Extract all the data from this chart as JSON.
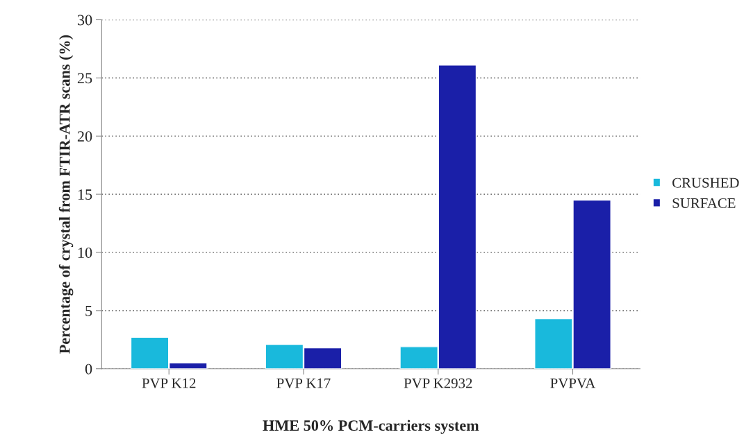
{
  "chart_data": {
    "type": "bar",
    "xlabel": "HME 50% PCM-carriers system",
    "ylabel": "Percentage of crystal from FTIR-ATR scans (%)",
    "categories": [
      "PVP K12",
      "PVP K17",
      "PVP K2932",
      "PVPVA"
    ],
    "series": [
      {
        "name": "CRUSHED",
        "color": "#19b9dc",
        "values": [
          2.7,
          2.1,
          1.9,
          4.3
        ]
      },
      {
        "name": "SURFACE",
        "color": "#1a1fa8",
        "values": [
          0.5,
          1.8,
          26.1,
          14.5
        ]
      }
    ],
    "ylim": [
      0,
      30
    ],
    "yticks": [
      0,
      5,
      10,
      15,
      20,
      25,
      30
    ],
    "grid": "y",
    "legend": "right"
  }
}
